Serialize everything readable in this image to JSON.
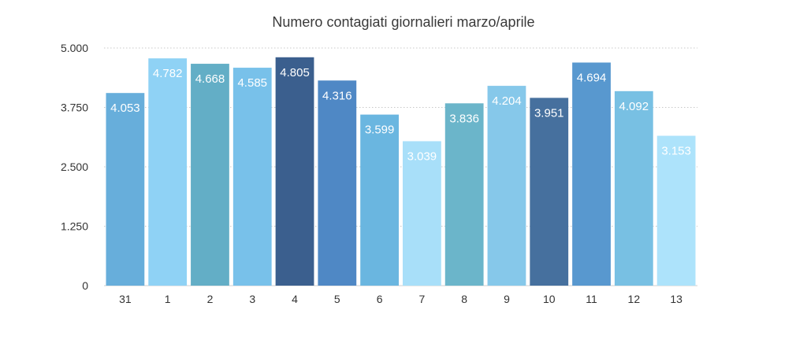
{
  "chart_data": {
    "type": "bar",
    "title": "Numero contagiati giornalieri marzo/aprile",
    "xlabel": "",
    "ylabel": "",
    "categories": [
      "31",
      "1",
      "2",
      "3",
      "4",
      "5",
      "6",
      "7",
      "8",
      "9",
      "10",
      "11",
      "12",
      "13"
    ],
    "values": [
      4053,
      4782,
      4668,
      4585,
      4805,
      4316,
      3599,
      3039,
      3836,
      4204,
      3951,
      4694,
      4092,
      3153
    ],
    "value_labels": [
      "4.053",
      "4.782",
      "4.668",
      "4.585",
      "4.805",
      "4.316",
      "3.599",
      "3.039",
      "3.836",
      "4.204",
      "3.951",
      "4.694",
      "4.092",
      "3.153"
    ],
    "y_ticks": [
      0,
      1250,
      2500,
      3750,
      5000
    ],
    "y_tick_labels": [
      "0",
      "1.250",
      "2.500",
      "3.750",
      "5.000"
    ],
    "ylim": [
      0,
      5000
    ],
    "grid": true,
    "legend": "none",
    "bar_colors": [
      "#67aedb",
      "#8fd2f5",
      "#63aec6",
      "#78c1ea",
      "#3b5f8e",
      "#4f88c5",
      "#6ab6e0",
      "#a8dff9",
      "#6bb5ca",
      "#86c8ea",
      "#46709e",
      "#5898cf",
      "#78c0e3",
      "#ade3fb"
    ]
  }
}
